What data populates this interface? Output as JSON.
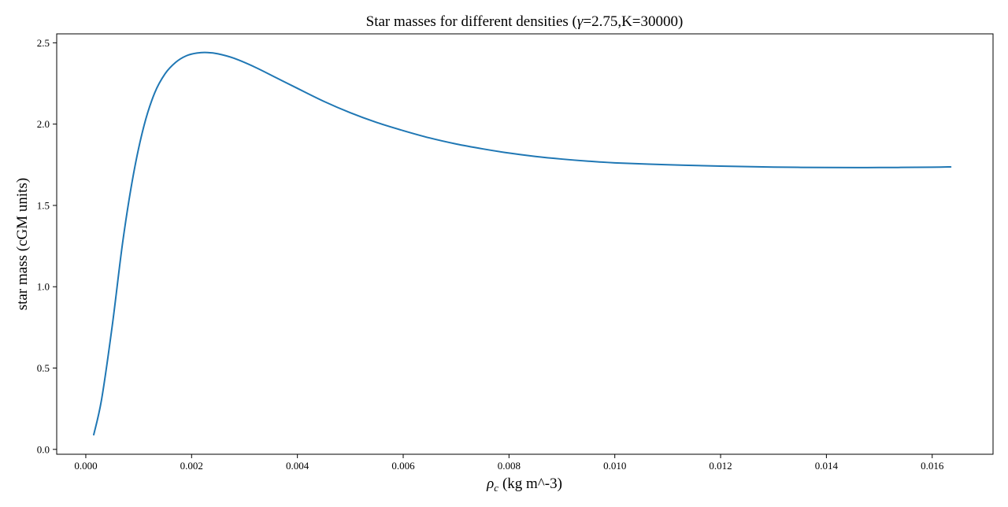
{
  "chart_data": {
    "type": "line",
    "title_prefix": "Star masses for different densities (",
    "title_gamma": "γ",
    "title_suffix": "=2.75,K=30000)",
    "xlabel_symbol": "ρ",
    "xlabel_subscript": "c",
    "xlabel_text": "(kg m^-3)",
    "ylabel": "star mass (cGM units)",
    "xlim": [
      -0.00055,
      0.01715
    ],
    "ylim": [
      -0.03,
      2.555
    ],
    "xticks": [
      0.0,
      0.002,
      0.004,
      0.006,
      0.008,
      0.01,
      0.012,
      0.014,
      0.016
    ],
    "xtick_labels": [
      "0.000",
      "0.002",
      "0.004",
      "0.006",
      "0.008",
      "0.010",
      "0.012",
      "0.014",
      "0.016"
    ],
    "yticks": [
      0.0,
      0.5,
      1.0,
      1.5,
      2.0,
      2.5
    ],
    "ytick_labels": [
      "0.0",
      "0.5",
      "1.0",
      "1.5",
      "2.0",
      "2.5"
    ],
    "grid": false,
    "line_color": "#1f77b4",
    "series": [
      {
        "x": [
          0.00015,
          0.0003,
          0.0005,
          0.0007,
          0.0009,
          0.0011,
          0.0013,
          0.0015,
          0.0017,
          0.0019,
          0.0021,
          0.0023,
          0.0025,
          0.0028,
          0.0032,
          0.0036,
          0.004,
          0.0045,
          0.005,
          0.0055,
          0.006,
          0.0065,
          0.007,
          0.0075,
          0.008,
          0.0085,
          0.009,
          0.0095,
          0.01,
          0.011,
          0.012,
          0.013,
          0.014,
          0.015,
          0.016,
          0.01635
        ],
        "y": [
          0.09,
          0.31,
          0.76,
          1.28,
          1.69,
          1.99,
          2.19,
          2.31,
          2.38,
          2.42,
          2.437,
          2.44,
          2.432,
          2.405,
          2.35,
          2.285,
          2.22,
          2.14,
          2.07,
          2.01,
          1.96,
          1.915,
          1.878,
          1.848,
          1.822,
          1.801,
          1.785,
          1.772,
          1.762,
          1.75,
          1.742,
          1.736,
          1.733,
          1.733,
          1.735,
          1.737
        ]
      }
    ]
  }
}
